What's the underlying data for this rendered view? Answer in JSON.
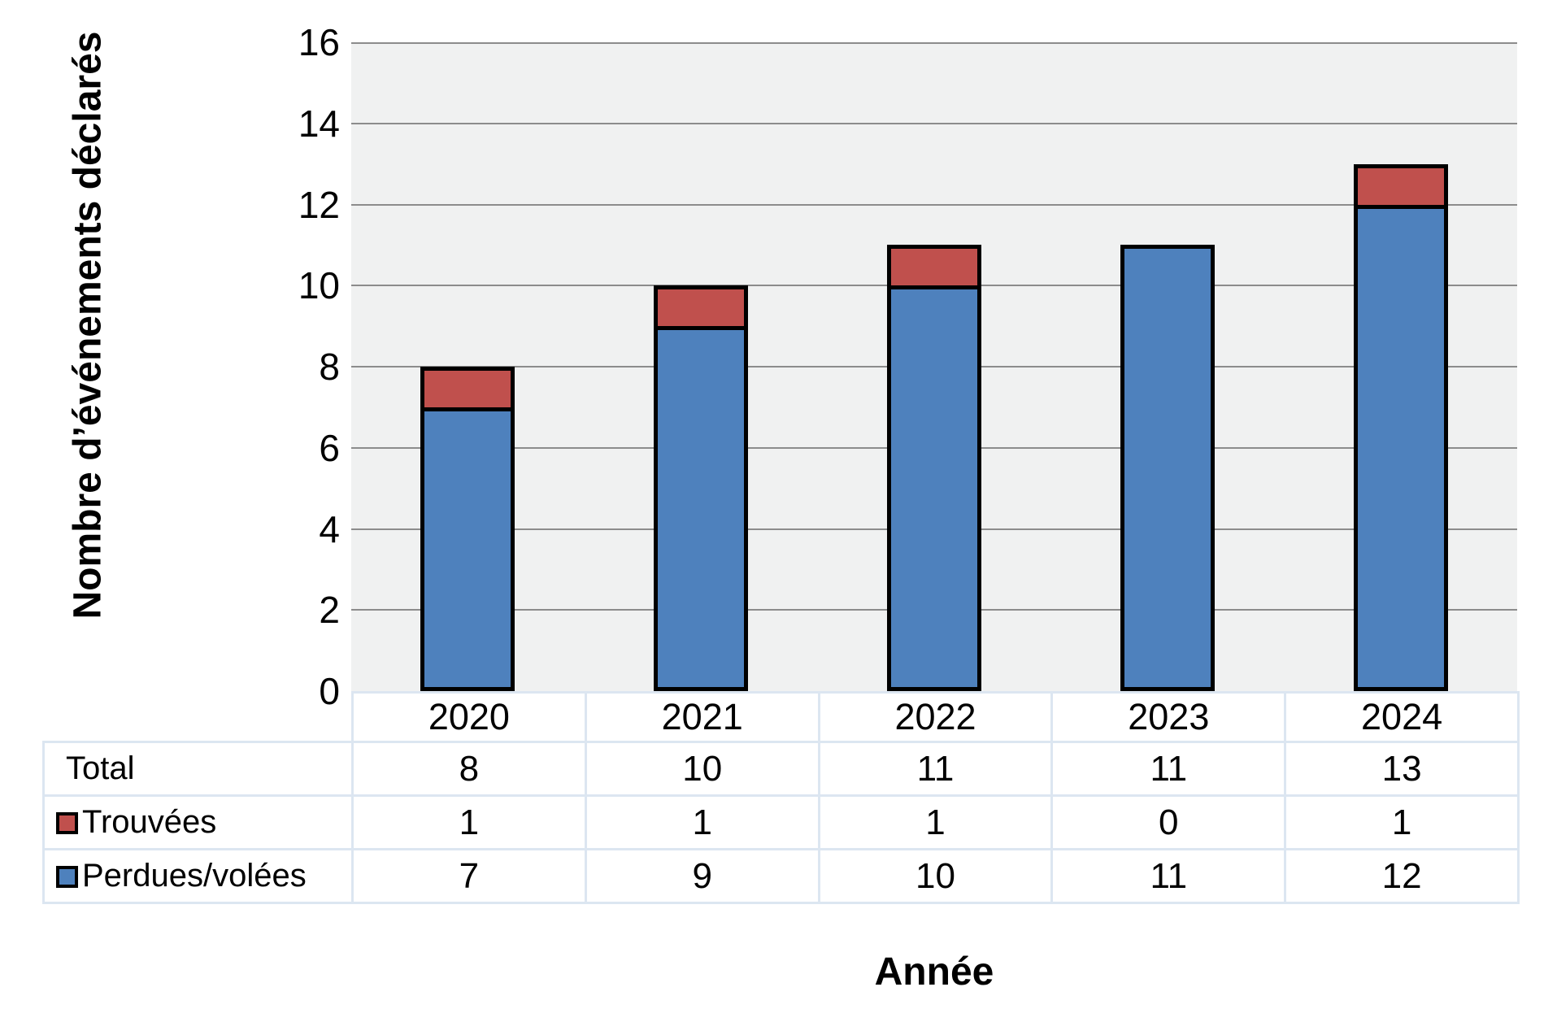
{
  "chart_data": {
    "type": "bar",
    "stacked": true,
    "title": "",
    "xlabel": "Année",
    "ylabel": "Nombre d’événements déclarés",
    "categories": [
      "2020",
      "2021",
      "2022",
      "2023",
      "2024"
    ],
    "series": [
      {
        "name": "Perdues/volées",
        "color": "#4E81BD",
        "values": [
          7,
          9,
          10,
          11,
          12
        ]
      },
      {
        "name": "Trouvées",
        "color": "#C0504D",
        "values": [
          1,
          1,
          1,
          0,
          1
        ]
      }
    ],
    "totals": [
      8,
      10,
      11,
      11,
      13
    ],
    "ylim": [
      0,
      16
    ],
    "yticks": [
      0,
      2,
      4,
      6,
      8,
      10,
      12,
      14,
      16
    ],
    "grid": true,
    "legend_position": "in-table",
    "plot_bg": "#F0F1F1",
    "gridline_color": "#8C8C8C",
    "bar_border_color": "#000000"
  },
  "table": {
    "header_row": [
      "2020",
      "2021",
      "2022",
      "2023",
      "2024"
    ],
    "rows": [
      {
        "label": "Total",
        "swatch": null,
        "values": [
          "8",
          "10",
          "11",
          "11",
          "13"
        ]
      },
      {
        "label": "Trouvées",
        "swatch": "#C0504D",
        "values": [
          "1",
          "1",
          "1",
          "0",
          "1"
        ]
      },
      {
        "label": "Perdues/volées",
        "swatch": "#4E81BD",
        "values": [
          "7",
          "9",
          "10",
          "11",
          "12"
        ]
      }
    ]
  }
}
